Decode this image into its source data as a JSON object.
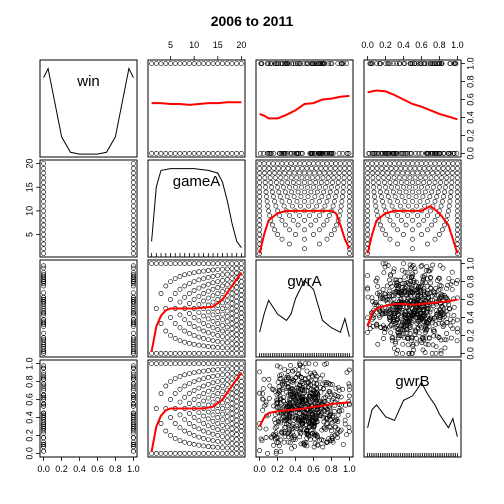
{
  "chart_data": {
    "type": "scatter",
    "title": "2006 to 2011",
    "variables": [
      "win",
      "gameA",
      "gwrA",
      "gwrB"
    ],
    "diagonal": "density",
    "smoother_color": "#ff0000",
    "point_color": "#000000",
    "axes": {
      "win": {
        "range": [
          0,
          1
        ],
        "ticks": [
          "0.0",
          "0.2",
          "0.4",
          "0.6",
          "0.8",
          "1.0"
        ]
      },
      "gameA": {
        "range": [
          1,
          20
        ],
        "ticks": [
          "5",
          "10",
          "15",
          "20"
        ]
      },
      "gwrA": {
        "range": [
          0,
          1
        ],
        "ticks": [
          "0.0",
          "0.2",
          "0.4",
          "0.6",
          "0.8",
          "1.0"
        ]
      },
      "gwrB": {
        "range": [
          0,
          1
        ],
        "ticks": [
          "0.0",
          "0.2",
          "0.4",
          "0.6",
          "0.8",
          "1.0"
        ]
      }
    },
    "density": {
      "win": {
        "x": [
          0,
          0.05,
          0.1,
          0.2,
          0.3,
          0.4,
          0.5,
          0.6,
          0.7,
          0.8,
          0.9,
          0.95,
          1.0
        ],
        "y": [
          0.85,
          0.95,
          0.7,
          0.2,
          0.03,
          0.01,
          0.01,
          0.01,
          0.03,
          0.2,
          0.7,
          0.95,
          0.85
        ]
      },
      "gameA": {
        "x": [
          1,
          2,
          3,
          5,
          7,
          10,
          13,
          15,
          16,
          17,
          18,
          19,
          20
        ],
        "y": [
          0.15,
          0.75,
          0.93,
          0.95,
          0.95,
          0.95,
          0.93,
          0.9,
          0.8,
          0.6,
          0.35,
          0.15,
          0.08
        ]
      },
      "gwrA": {
        "x": [
          0,
          0.05,
          0.1,
          0.2,
          0.3,
          0.35,
          0.4,
          0.5,
          0.6,
          0.65,
          0.7,
          0.8,
          0.9,
          0.95,
          1.0
        ],
        "y": [
          0.25,
          0.45,
          0.6,
          0.45,
          0.38,
          0.45,
          0.62,
          0.82,
          0.72,
          0.55,
          0.38,
          0.3,
          0.25,
          0.4,
          0.2
        ]
      },
      "gwrB": {
        "x": [
          0,
          0.05,
          0.1,
          0.2,
          0.3,
          0.4,
          0.5,
          0.55,
          0.6,
          0.65,
          0.7,
          0.75,
          0.8,
          0.9,
          0.95,
          1.0
        ],
        "y": [
          0.3,
          0.5,
          0.55,
          0.42,
          0.38,
          0.6,
          0.65,
          0.72,
          0.8,
          0.7,
          0.62,
          0.55,
          0.45,
          0.3,
          0.4,
          0.2
        ]
      }
    },
    "smoothers": {
      "win~gameA": {
        "x": [
          1,
          3,
          5,
          7,
          9,
          11,
          13,
          15,
          17,
          20
        ],
        "y": [
          0.56,
          0.56,
          0.55,
          0.55,
          0.54,
          0.55,
          0.56,
          0.56,
          0.57,
          0.57
        ]
      },
      "win~gwrA": {
        "x": [
          0,
          0.05,
          0.1,
          0.2,
          0.3,
          0.4,
          0.5,
          0.6,
          0.7,
          0.8,
          0.9,
          1.0
        ],
        "y": [
          0.44,
          0.42,
          0.39,
          0.39,
          0.43,
          0.48,
          0.55,
          0.56,
          0.6,
          0.61,
          0.63,
          0.64
        ]
      },
      "win~gwrB": {
        "x": [
          0,
          0.1,
          0.2,
          0.3,
          0.4,
          0.5,
          0.6,
          0.7,
          0.8,
          0.9,
          1.0
        ],
        "y": [
          0.68,
          0.7,
          0.69,
          0.65,
          0.6,
          0.55,
          0.52,
          0.48,
          0.44,
          0.41,
          0.38
        ]
      },
      "gameA~gwrA": {
        "x": [
          0,
          0.05,
          0.1,
          0.2,
          0.3,
          0.4,
          0.5,
          0.6,
          0.7,
          0.8,
          0.85,
          0.9,
          0.95,
          1.0
        ],
        "y": [
          1,
          5,
          8,
          9.5,
          10,
          10,
          10,
          10,
          10,
          10,
          9.5,
          7,
          4,
          2
        ]
      },
      "gameA~gwrB": {
        "x": [
          0,
          0.05,
          0.1,
          0.2,
          0.3,
          0.4,
          0.5,
          0.6,
          0.7,
          0.8,
          0.9,
          0.95,
          1.0
        ],
        "y": [
          1,
          5,
          8,
          9.5,
          10,
          10,
          10,
          10,
          11,
          9.5,
          7,
          4,
          1
        ]
      },
      "gwrA~gameA": {
        "x": [
          1,
          2,
          3,
          4,
          5,
          6,
          8,
          10,
          12,
          14,
          16,
          18,
          20
        ],
        "y": [
          0.02,
          0.3,
          0.42,
          0.48,
          0.5,
          0.5,
          0.5,
          0.5,
          0.51,
          0.52,
          0.6,
          0.75,
          0.9
        ]
      },
      "gwrA~gwrB": {
        "x": [
          0,
          0.05,
          0.1,
          0.2,
          0.3,
          0.4,
          0.5,
          0.6,
          0.7,
          0.8,
          0.9,
          1.0
        ],
        "y": [
          0.3,
          0.45,
          0.5,
          0.53,
          0.55,
          0.55,
          0.54,
          0.55,
          0.56,
          0.57,
          0.58,
          0.6
        ]
      },
      "gwrB~gameA": {
        "x": [
          1,
          2,
          3,
          4,
          5,
          6,
          8,
          10,
          12,
          14,
          16,
          18,
          20
        ],
        "y": [
          0.02,
          0.3,
          0.42,
          0.48,
          0.5,
          0.5,
          0.5,
          0.5,
          0.5,
          0.52,
          0.6,
          0.75,
          0.9
        ]
      },
      "gwrB~gwrA": {
        "x": [
          0,
          0.05,
          0.1,
          0.2,
          0.3,
          0.4,
          0.5,
          0.6,
          0.7,
          0.8,
          0.9,
          1.0
        ],
        "y": [
          0.3,
          0.4,
          0.45,
          0.47,
          0.48,
          0.49,
          0.5,
          0.52,
          0.53,
          0.55,
          0.56,
          0.57
        ]
      }
    }
  }
}
